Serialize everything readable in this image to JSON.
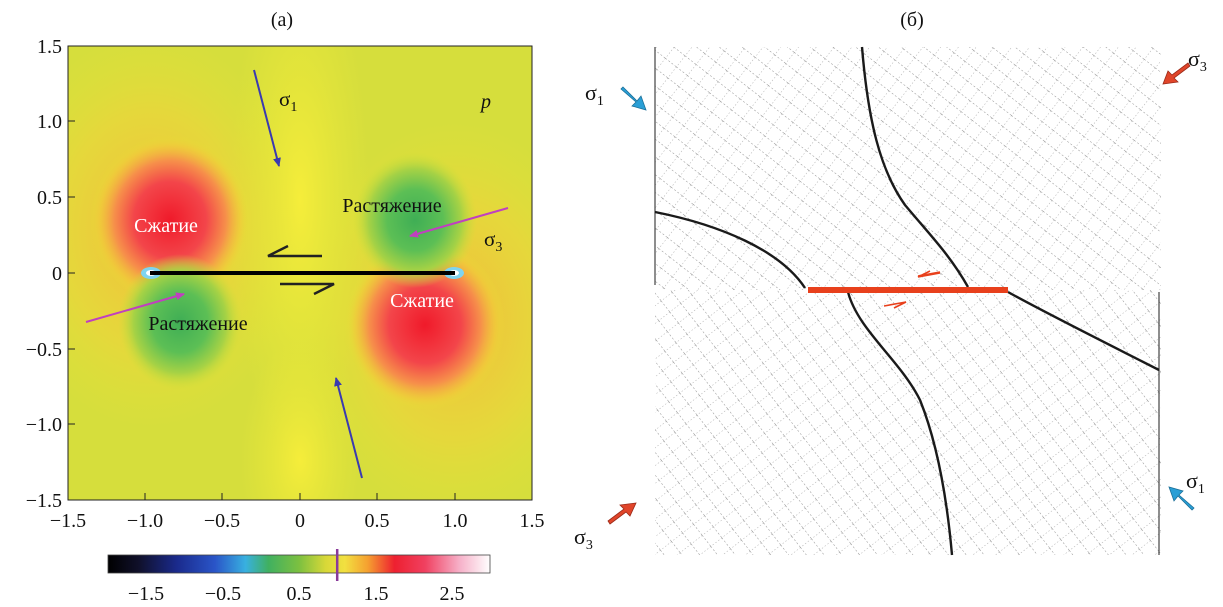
{
  "panel_a": {
    "title": "(а)",
    "field_label": "p",
    "sigma1": "σ",
    "sigma1_sub": "1",
    "sigma3": "σ",
    "sigma3_sub": "3",
    "compression_left": "Сжатие",
    "compression_right": "Сжатие",
    "tension_left": "Растяжение",
    "tension_right": "Растяжение",
    "x_ticks": [
      "−1.5",
      "−1.0",
      "−0.5",
      "0",
      "0.5",
      "1.0",
      "1.5"
    ],
    "y_ticks": [
      "1.5",
      "1.0",
      "0.5",
      "0",
      "−0.5",
      "−1.0",
      "−1.5"
    ],
    "colorbar_ticks": [
      "−1.5",
      "−0.5",
      "0.5",
      "1.5",
      "2.5"
    ],
    "colorbar_range": [
      -2.0,
      3.0
    ],
    "colorbar_marker_value": 1.0
  },
  "panel_b": {
    "title": "(б)",
    "sigma1_top": "σ",
    "sigma1_top_sub": "1",
    "sigma3_top": "σ",
    "sigma3_top_sub": "3",
    "sigma3_bottom": "σ",
    "sigma3_bottom_sub": "3",
    "sigma1_bottom": "σ",
    "sigma1_bottom_sub": "1"
  },
  "colors": {
    "sigma1_arrow_a": "#3a3ab0",
    "sigma3_arrow_a": "#c040c0",
    "sigma1_arrow_b": "#2a9fd6",
    "sigma3_arrow_b": "#e0452a",
    "fault_b": "#e8401c"
  }
}
